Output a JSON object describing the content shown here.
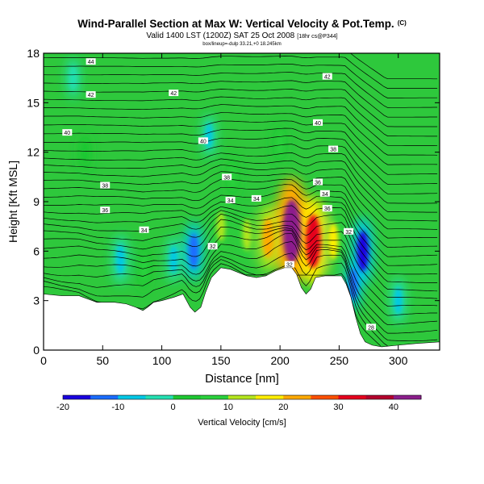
{
  "chart_data": {
    "type": "heatmap",
    "title": "Wind-Parallel Section at Max W: Vertical Velocity & Pot.Temp.",
    "title_mark": "(C)",
    "subtitle": "Valid 1400 LST (1200Z) SAT 25 Oct 2008",
    "subtitle_note": "[18hr cs@P344]",
    "coords_line": "box/lineup=-dulp 33.21,+0 18.245km",
    "xlabel": "Distance [nm]",
    "ylabel": "Height [Kft MSL]",
    "xlim": [
      0,
      335
    ],
    "ylim": [
      0,
      18
    ],
    "xticks": [
      0,
      50,
      100,
      150,
      200,
      250,
      300
    ],
    "yticks": [
      0,
      3,
      6,
      9,
      12,
      15,
      18
    ],
    "colorbar": {
      "label": "Vertical Velocity [cm/s]",
      "range": [
        -20,
        45
      ],
      "ticks": [
        -20,
        -10,
        0,
        10,
        20,
        30,
        40
      ]
    },
    "terrain_profile": [
      [
        0,
        3.4
      ],
      [
        15,
        3.3
      ],
      [
        30,
        3.3
      ],
      [
        45,
        2.9
      ],
      [
        60,
        2.9
      ],
      [
        70,
        2.8
      ],
      [
        78,
        2.6
      ],
      [
        84,
        2.4
      ],
      [
        88,
        2.6
      ],
      [
        93,
        2.9
      ],
      [
        100,
        3.0
      ],
      [
        110,
        3.2
      ],
      [
        118,
        3.4
      ],
      [
        124,
        2.6
      ],
      [
        128,
        2.3
      ],
      [
        133,
        2.6
      ],
      [
        137,
        3.5
      ],
      [
        142,
        4.4
      ],
      [
        150,
        5.0
      ],
      [
        158,
        4.9
      ],
      [
        165,
        4.7
      ],
      [
        172,
        4.5
      ],
      [
        180,
        4.4
      ],
      [
        188,
        4.5
      ],
      [
        196,
        4.8
      ],
      [
        204,
        5.0
      ],
      [
        210,
        5.0
      ],
      [
        214,
        4.6
      ],
      [
        218,
        3.8
      ],
      [
        222,
        3.4
      ],
      [
        226,
        3.7
      ],
      [
        230,
        4.4
      ],
      [
        238,
        4.5
      ],
      [
        246,
        4.5
      ],
      [
        252,
        4.5
      ],
      [
        256,
        4.0
      ],
      [
        260,
        3.2
      ],
      [
        264,
        2.0
      ],
      [
        268,
        1.0
      ],
      [
        272,
        0.5
      ],
      [
        278,
        0.3
      ],
      [
        286,
        0.2
      ],
      [
        300,
        0.3
      ],
      [
        315,
        0.4
      ],
      [
        335,
        0.5
      ]
    ],
    "vertical_velocity_cells": [
      {
        "x": 210,
        "y": 7.2,
        "value": 42
      },
      {
        "x": 228,
        "y": 6.6,
        "value": 32
      },
      {
        "x": 190,
        "y": 6.8,
        "value": 20
      },
      {
        "x": 245,
        "y": 6.6,
        "value": 16
      },
      {
        "x": 172,
        "y": 7.0,
        "value": 12
      },
      {
        "x": 150,
        "y": 7.5,
        "value": 10
      },
      {
        "x": 85,
        "y": 5.0,
        "value": 8
      },
      {
        "x": 35,
        "y": 12.0,
        "value": 4
      },
      {
        "x": 160,
        "y": 10.5,
        "value": 5
      },
      {
        "x": 200,
        "y": 12.5,
        "value": 5
      },
      {
        "x": 270,
        "y": 6.0,
        "value": -20
      },
      {
        "x": 262,
        "y": 4.0,
        "value": -12
      },
      {
        "x": 127,
        "y": 6.0,
        "value": -15
      },
      {
        "x": 110,
        "y": 5.5,
        "value": -8
      },
      {
        "x": 65,
        "y": 5.5,
        "value": -10
      },
      {
        "x": 300,
        "y": 3.0,
        "value": -8
      },
      {
        "x": 140,
        "y": 13.0,
        "value": -6
      },
      {
        "x": 25,
        "y": 16.5,
        "value": -5
      }
    ],
    "isentrope_labels": [
      {
        "text": "44",
        "x": 40,
        "y": 17.5
      },
      {
        "text": "42",
        "x": 40,
        "y": 15.5
      },
      {
        "text": "42",
        "x": 110,
        "y": 15.6
      },
      {
        "text": "42",
        "x": 240,
        "y": 16.6
      },
      {
        "text": "40",
        "x": 20,
        "y": 13.2
      },
      {
        "text": "40",
        "x": 135,
        "y": 12.7
      },
      {
        "text": "40",
        "x": 232,
        "y": 13.8
      },
      {
        "text": "38",
        "x": 52,
        "y": 10.0
      },
      {
        "text": "38",
        "x": 155,
        "y": 10.5
      },
      {
        "text": "38",
        "x": 245,
        "y": 12.2
      },
      {
        "text": "36",
        "x": 52,
        "y": 8.5
      },
      {
        "text": "36",
        "x": 232,
        "y": 10.2
      },
      {
        "text": "36",
        "x": 240,
        "y": 8.6
      },
      {
        "text": "34",
        "x": 85,
        "y": 7.3
      },
      {
        "text": "34",
        "x": 158,
        "y": 9.1
      },
      {
        "text": "34",
        "x": 180,
        "y": 9.2
      },
      {
        "text": "34",
        "x": 238,
        "y": 9.5
      },
      {
        "text": "32",
        "x": 143,
        "y": 6.3
      },
      {
        "text": "32",
        "x": 208,
        "y": 5.2
      },
      {
        "text": "32",
        "x": 258,
        "y": 7.2
      },
      {
        "text": "28",
        "x": 277,
        "y": 1.4
      }
    ]
  },
  "colors": {
    "bad_background": "#ffffff",
    "terrain": "#ffffff",
    "contour": "#000000",
    "colormap": [
      "#1a00e0",
      "#1a6cff",
      "#00c8e6",
      "#24e0b2",
      "#1ec832",
      "#2ad23c",
      "#b4e61e",
      "#ffee00",
      "#ffaa00",
      "#ff5000",
      "#e6001e",
      "#b4002d",
      "#8c1e8c"
    ]
  }
}
